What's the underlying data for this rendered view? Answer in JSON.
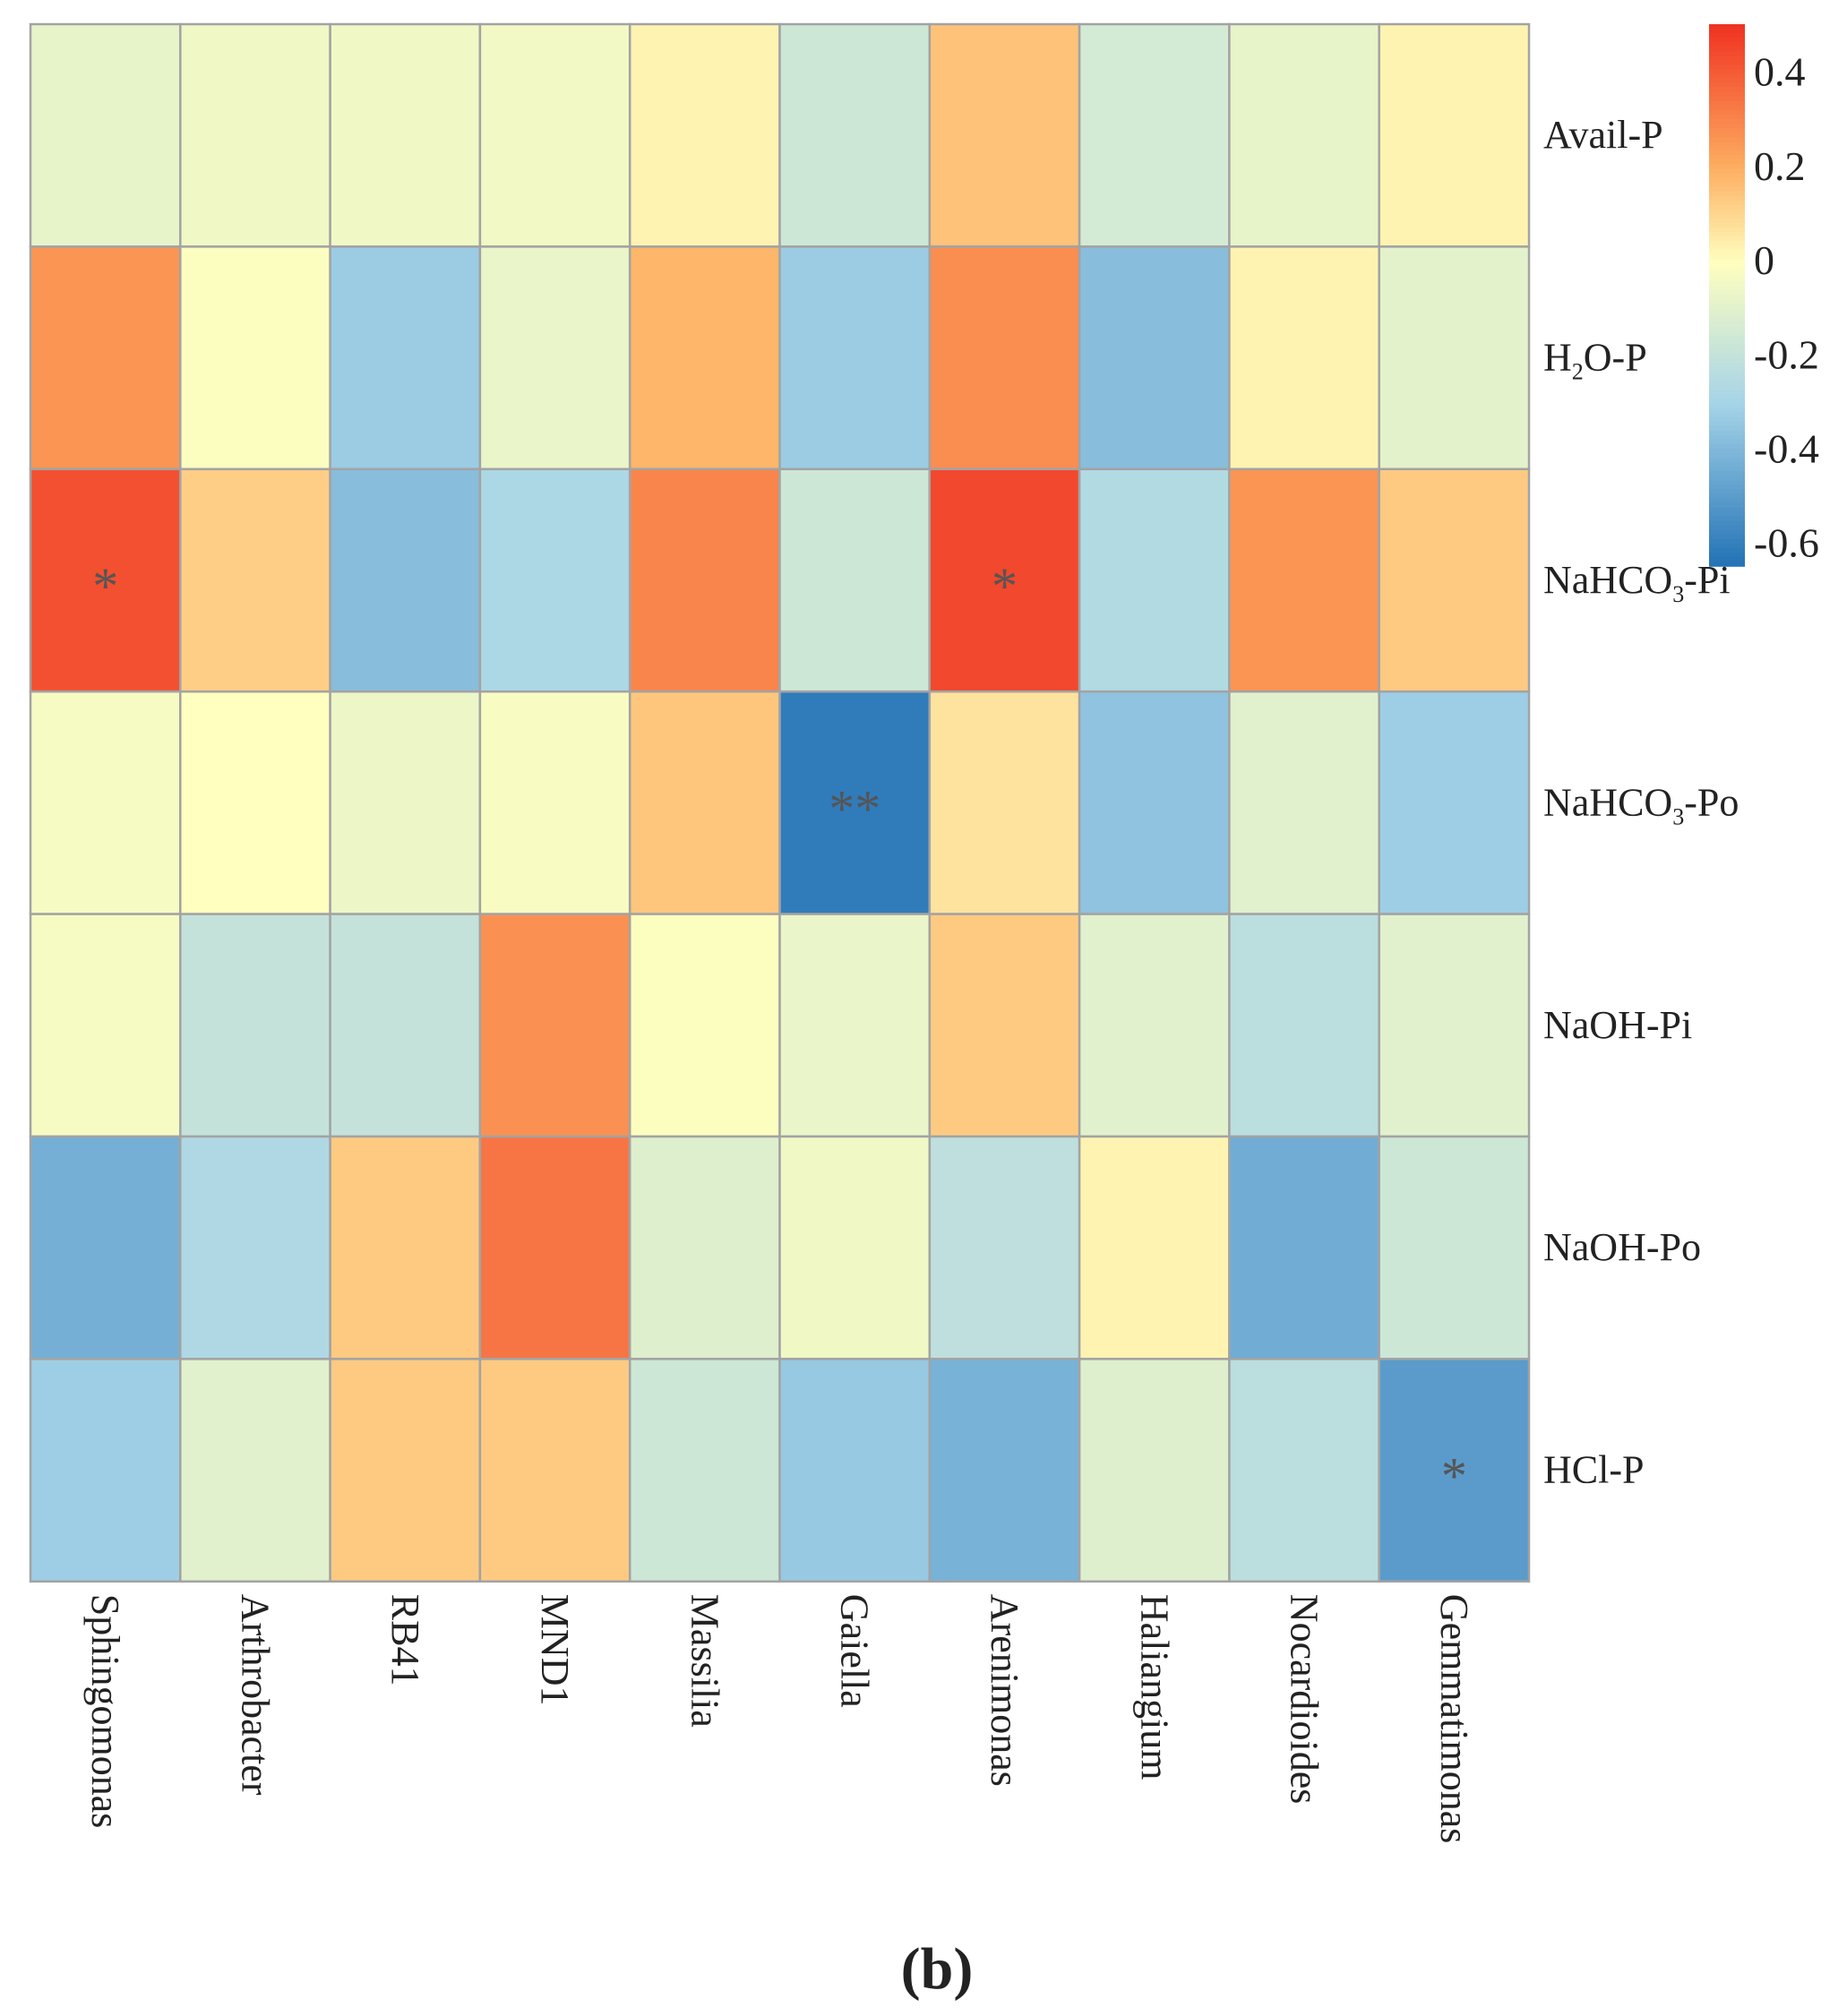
{
  "chart_data": {
    "type": "heatmap",
    "title": "",
    "panel_label": "(b)",
    "rows": [
      {
        "label": "Avail-P",
        "base": "Avail-P",
        "sub": "",
        "tail": ""
      },
      {
        "label": "H2O-P",
        "base": "H",
        "sub": "2",
        "tail": "O-P"
      },
      {
        "label": "NaHCO3-Pi",
        "base": "NaHCO",
        "sub": "3",
        "tail": "-Pi"
      },
      {
        "label": "NaHCO3-Po",
        "base": "NaHCO",
        "sub": "3",
        "tail": "-Po"
      },
      {
        "label": "NaOH-Pi",
        "base": "NaOH-Pi",
        "sub": "",
        "tail": ""
      },
      {
        "label": "NaOH-Po",
        "base": "NaOH-Po",
        "sub": "",
        "tail": ""
      },
      {
        "label": "HCl-P",
        "base": "HCl-P",
        "sub": "",
        "tail": ""
      }
    ],
    "columns": [
      "Sphingomonas",
      "Arthrobacter",
      "RB41",
      "MND1",
      "Massilia",
      "Gaiella",
      "Arenimonas",
      "Haliangium",
      "Nocardioides",
      "Gemmatimonas"
    ],
    "values": [
      [
        -0.08,
        -0.05,
        -0.05,
        -0.04,
        0.03,
        -0.17,
        0.15,
        -0.15,
        -0.08,
        0.03
      ],
      [
        0.26,
        -0.01,
        -0.33,
        -0.07,
        0.18,
        -0.33,
        0.28,
        -0.38,
        0.03,
        -0.09
      ],
      [
        0.43,
        0.12,
        -0.38,
        -0.28,
        0.3,
        -0.17,
        0.45,
        -0.26,
        0.26,
        0.13
      ],
      [
        -0.03,
        0.0,
        -0.06,
        -0.02,
        0.14,
        -0.61,
        0.07,
        -0.36,
        -0.1,
        -0.32
      ],
      [
        -0.03,
        -0.2,
        -0.2,
        0.27,
        -0.01,
        -0.07,
        0.13,
        -0.1,
        -0.23,
        -0.1
      ],
      [
        -0.43,
        -0.27,
        0.13,
        0.34,
        -0.11,
        -0.05,
        -0.22,
        0.03,
        -0.44,
        -0.17
      ],
      [
        -0.32,
        -0.1,
        0.13,
        0.13,
        -0.17,
        -0.34,
        -0.42,
        -0.11,
        -0.23,
        -0.5
      ]
    ],
    "significance": [
      [
        "",
        "",
        "",
        "",
        "",
        "",
        "",
        "",
        "",
        ""
      ],
      [
        "",
        "",
        "",
        "",
        "",
        "",
        "",
        "",
        "",
        ""
      ],
      [
        "*",
        "",
        "",
        "",
        "",
        "",
        "*",
        "",
        "",
        ""
      ],
      [
        "",
        "",
        "",
        "",
        "",
        "**",
        "",
        "",
        "",
        ""
      ],
      [
        "",
        "",
        "",
        "",
        "",
        "",
        "",
        "",
        "",
        ""
      ],
      [
        "",
        "",
        "",
        "",
        "",
        "",
        "",
        "",
        "",
        ""
      ],
      [
        "",
        "",
        "",
        "",
        "",
        "",
        "",
        "",
        "",
        "*"
      ]
    ],
    "colorbar": {
      "range": [
        -0.65,
        0.5
      ],
      "ticks": [
        0.4,
        0.2,
        0,
        -0.2,
        -0.4,
        -0.6
      ],
      "tick_labels": [
        "0.4",
        "0.2",
        "0",
        "-0.2",
        "-0.4",
        "-0.6"
      ],
      "colors": {
        "low": "#2171b5",
        "mid": "#ffffbf",
        "high": "#f03322",
        "neg_mid": "#a6d4e8",
        "pos_mid": "#fdae61"
      }
    },
    "legend_position": "top-right"
  }
}
